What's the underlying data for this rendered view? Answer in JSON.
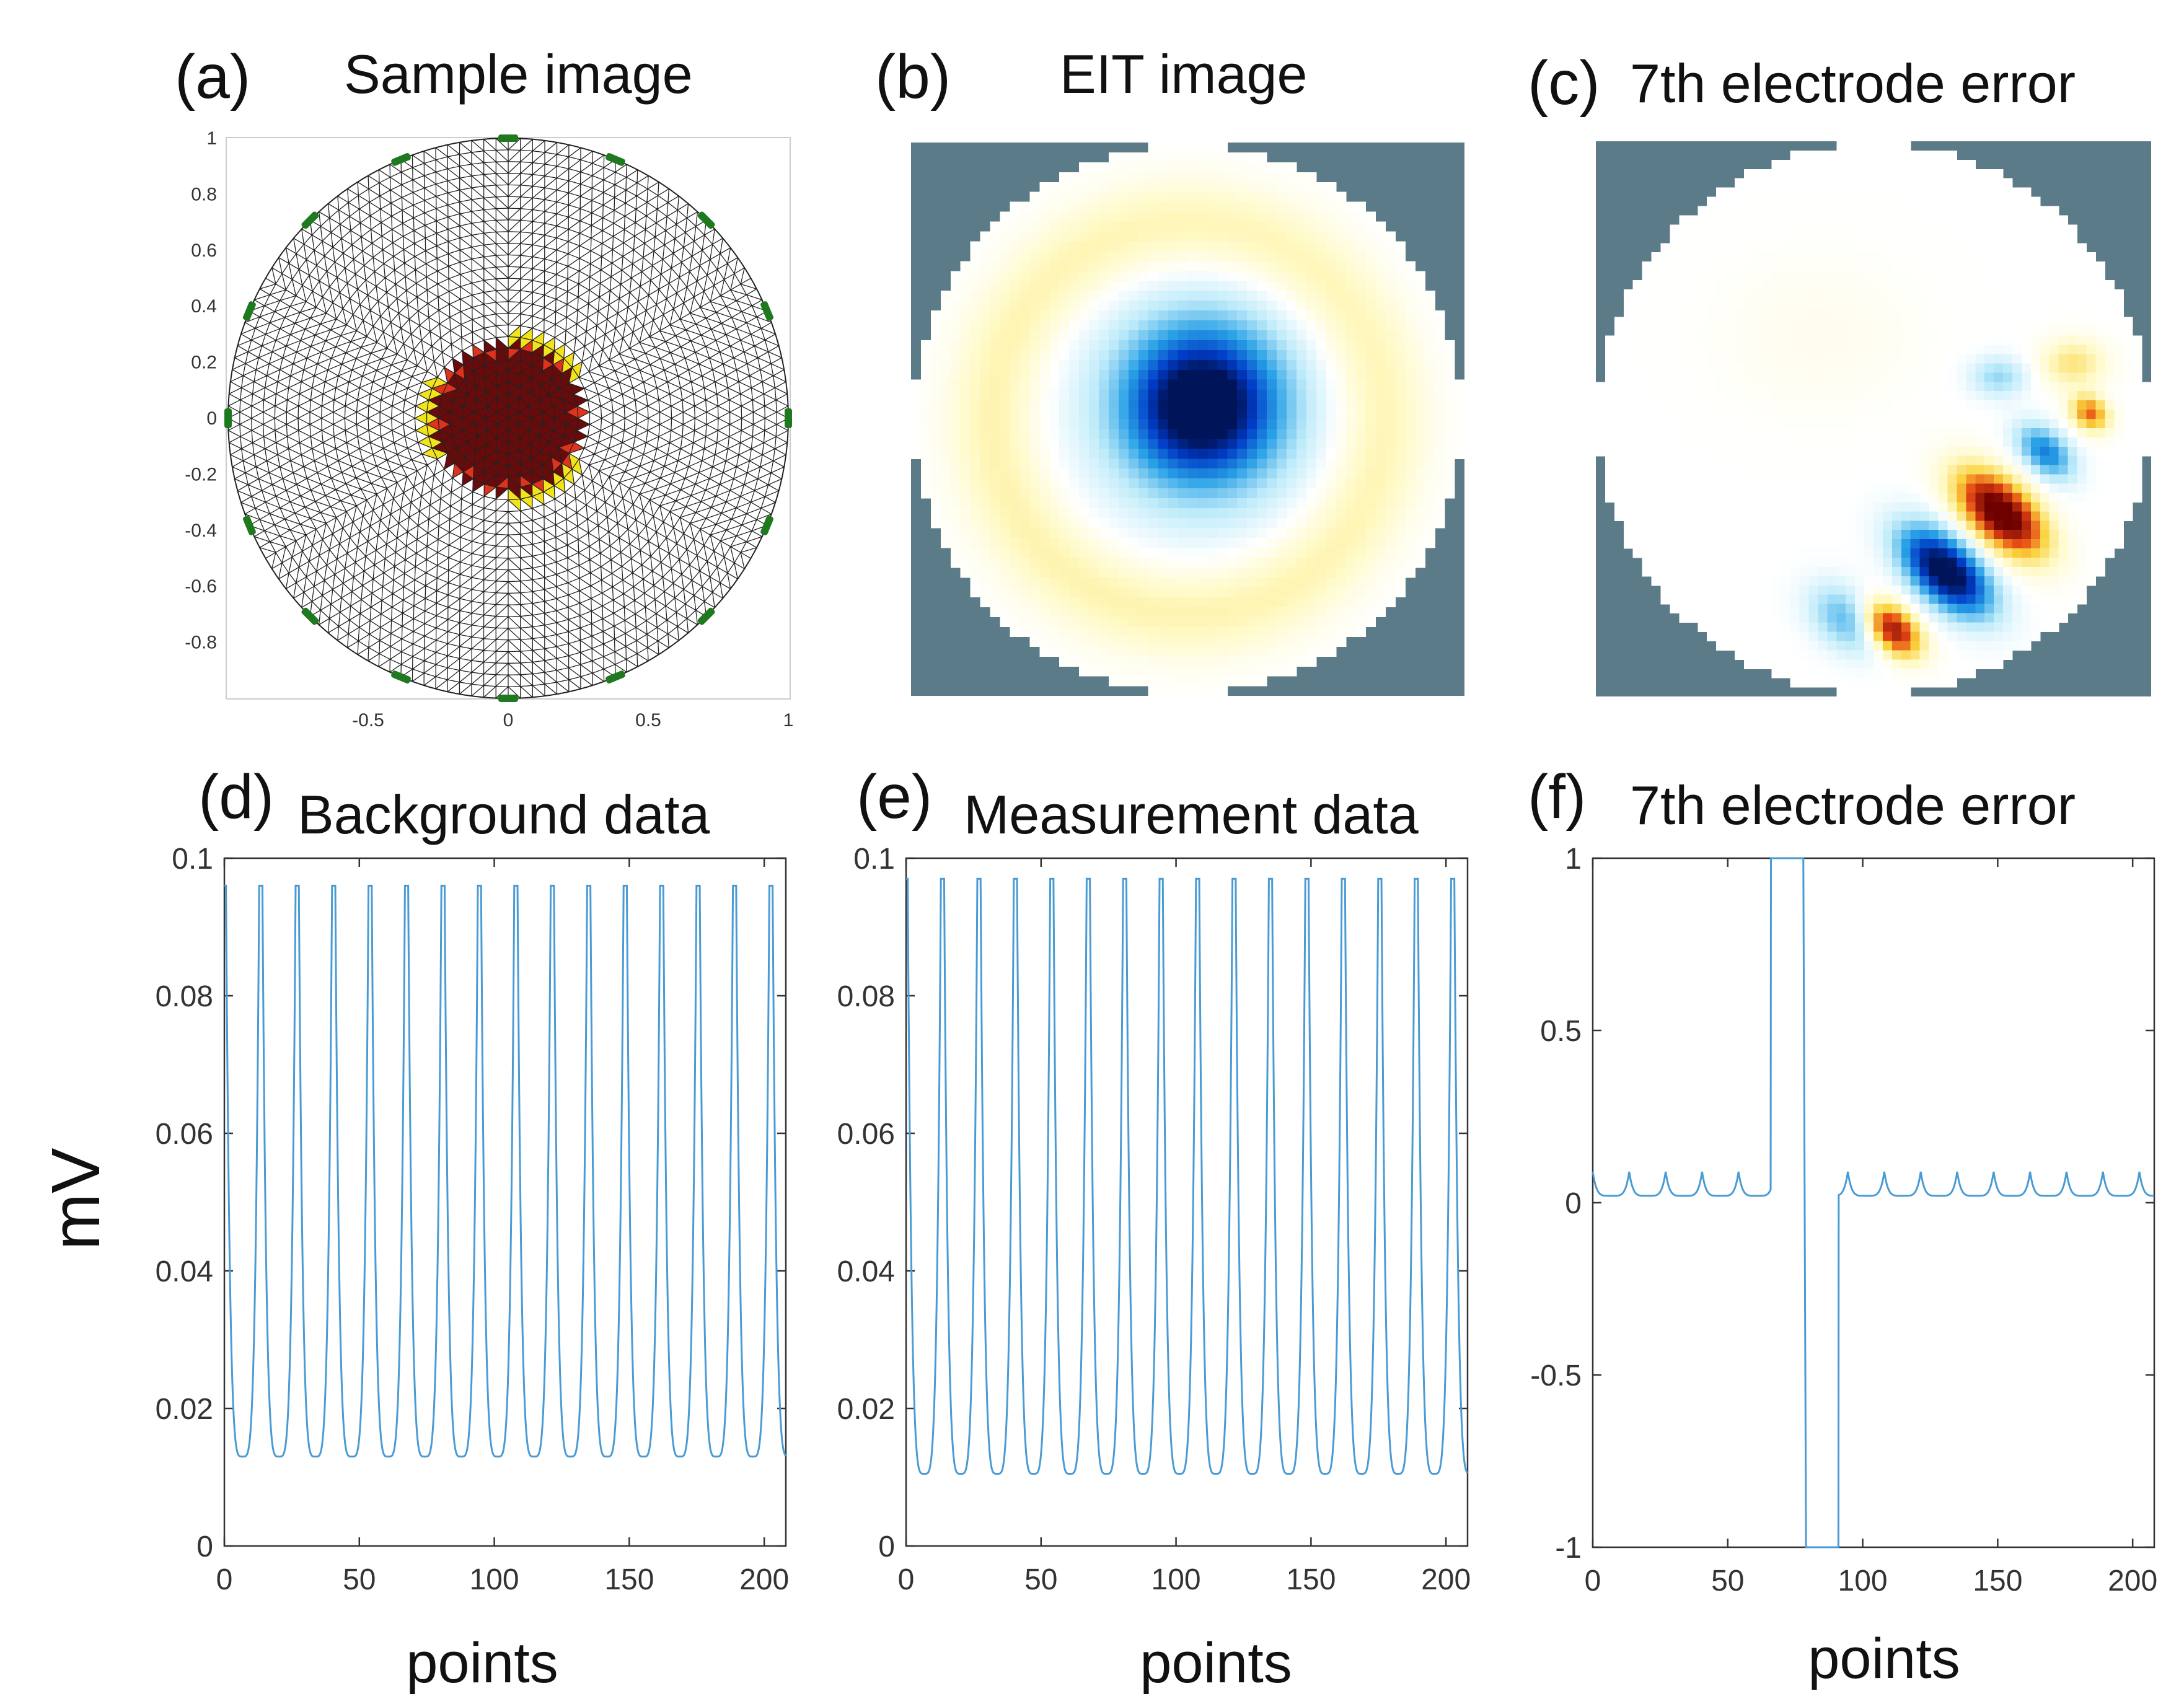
{
  "colors": {
    "trace": "#4a9bd4",
    "eit_background": "#5b7b88",
    "mesh_edge": "#222222",
    "electrode": "#1f7a1f",
    "inclusion_core": "#6b0a0a",
    "inclusion_mid": "#e0321c",
    "inclusion_edge": "#f2e41a",
    "dark_blue": "#001a66",
    "dark_red": "#7a0000"
  },
  "chart_data": [
    {
      "id": "a",
      "type": "mesh",
      "letter": "(a)",
      "title": "Sample image",
      "xticks": [
        "-0.5",
        "0",
        "0.5",
        "1"
      ],
      "yticks": [
        "1",
        "0.8",
        "0.6",
        "0.4",
        "0.2",
        "0",
        "-0.2",
        "-0.4",
        "-0.6",
        "-0.8"
      ],
      "xlim": [
        -1,
        1
      ],
      "ylim": [
        -1,
        1
      ],
      "electrodes": 16,
      "inclusion": {
        "cx": 0,
        "cy": 0,
        "r": 0.3
      }
    },
    {
      "id": "b",
      "type": "heatmap",
      "letter": "(b)",
      "title": "EIT image",
      "description_values": {
        "blob_cx": 0.05,
        "blob_cy": 0.05,
        "blob_r": 0.35,
        "ring_r": 0.7
      }
    },
    {
      "id": "c",
      "type": "heatmap",
      "letter": "(c)",
      "title": "7th electrode error"
    },
    {
      "id": "d",
      "type": "line",
      "letter": "(d)",
      "title": "Background data",
      "xlabel": "points",
      "ylabel": "mV",
      "xlim": [
        0,
        208
      ],
      "ylim": [
        0,
        0.1
      ],
      "xticks": [
        "0",
        "50",
        "100",
        "150",
        "200"
      ],
      "yticks": [
        "0.1",
        "0.08",
        "0.06",
        "0.04",
        "0.02",
        "0"
      ],
      "peak": 0.096,
      "trough": 0.013,
      "period": 13.5,
      "cycles": 16
    },
    {
      "id": "e",
      "type": "line",
      "letter": "(e)",
      "title": "Measurement data",
      "xlabel": "points",
      "xlim": [
        0,
        208
      ],
      "ylim": [
        0,
        0.1
      ],
      "xticks": [
        "0",
        "50",
        "100",
        "150",
        "200"
      ],
      "yticks": [
        "0.1",
        "0.08",
        "0.06",
        "0.04",
        "0.02",
        "0"
      ],
      "peak": 0.097,
      "trough": 0.0105,
      "period": 13.5,
      "cycles": 16
    },
    {
      "id": "f",
      "type": "line",
      "letter": "(f)",
      "title": "7th electrode error",
      "xlabel": "points",
      "xlim": [
        0,
        208
      ],
      "ylim": [
        -1,
        1
      ],
      "xticks": [
        "0",
        "50",
        "100",
        "150",
        "200"
      ],
      "yticks": [
        "1",
        "0.5",
        "0",
        "-0.5",
        "-1"
      ],
      "baseline": 0.02,
      "bump": 0.09,
      "high_segment": [
        66,
        78
      ],
      "low_segment": [
        79,
        91
      ]
    }
  ]
}
